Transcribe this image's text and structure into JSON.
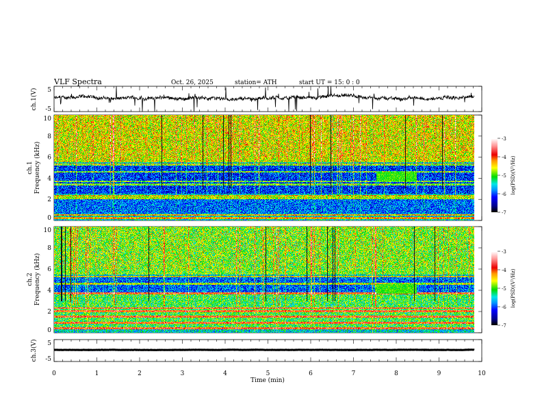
{
  "header": {
    "title": "VLF  Spectra",
    "date": "Oct. 26, 2025",
    "station": "station= ATH",
    "start_ut": "start  UT  =    15: 0   : 0"
  },
  "chart_data": {
    "type": "heatmap",
    "xlabel": "Time  (min)",
    "xlim": [
      0,
      10
    ],
    "x_ticks": [
      "0",
      "1",
      "2",
      "3",
      "4",
      "5",
      "6",
      "7",
      "8",
      "9",
      "10"
    ],
    "data_end_min": 9.83,
    "panels": [
      {
        "name": "ch1-waveform",
        "type": "line",
        "ylabel": "ch.1(V)",
        "ylim": [
          -5,
          5
        ],
        "y_ticks": [
          "5",
          "-5"
        ],
        "mean": 0.3,
        "spread": 1.2,
        "color": "#000000"
      },
      {
        "name": "ch1-spectrogram",
        "type": "heatmap",
        "ylabel_channel": "ch.1",
        "ylabel": "Frequency  (kHz)",
        "ylim": [
          0,
          10
        ],
        "y_ticks": [
          "0",
          "2",
          "4",
          "6",
          "8",
          "10"
        ],
        "colorbar": {
          "label": "log(PSD)(V²/Hz)",
          "range": [
            -7,
            -3
          ],
          "ticks": [
            "-3",
            "-4",
            "-5",
            "-6",
            "-7"
          ]
        },
        "regions": [
          {
            "freq_khz": [
              5.5,
              10
            ],
            "log_psd": -4.6
          },
          {
            "freq_khz": [
              2.5,
              5.3
            ],
            "log_psd": -6.1
          },
          {
            "freq_khz": [
              0.6,
              2.3
            ],
            "log_psd": -5.9
          }
        ],
        "bands_khz": [
          5.3,
          4.6,
          3.7,
          3.4,
          2.3,
          2.1,
          0.5,
          0.2
        ]
      },
      {
        "name": "ch2-spectrogram",
        "type": "heatmap",
        "ylabel_channel": "ch.2",
        "ylabel": "Frequency  (kHz)",
        "ylim": [
          0,
          10
        ],
        "y_ticks": [
          "0",
          "2",
          "4",
          "6",
          "8",
          "10"
        ],
        "colorbar": {
          "label": "log(PSD)(V²/Hz)",
          "range": [
            -7,
            -3
          ],
          "ticks": [
            "-3",
            "-4",
            "-5",
            "-6",
            "-7"
          ]
        },
        "regions": [
          {
            "freq_khz": [
              5.5,
              10
            ],
            "log_psd": -4.9
          },
          {
            "freq_khz": [
              3.8,
              5.3
            ],
            "log_psd": -5.9
          },
          {
            "freq_khz": [
              0.3,
              3.8
            ],
            "log_psd": -5.1
          }
        ],
        "bands_khz": [
          5.3,
          4.6,
          3.7,
          2.3,
          2.0,
          1.5,
          0.9,
          0.4
        ]
      },
      {
        "name": "ch3-waveform",
        "type": "line",
        "ylabel": "ch.3(V)",
        "ylim": [
          -5,
          5
        ],
        "y_ticks": [
          "5",
          "-5"
        ],
        "mean": 0.3,
        "spread": 0.1,
        "color": "#000000"
      }
    ],
    "colors": {
      "axis": "#000000",
      "trace": "#000000"
    }
  }
}
